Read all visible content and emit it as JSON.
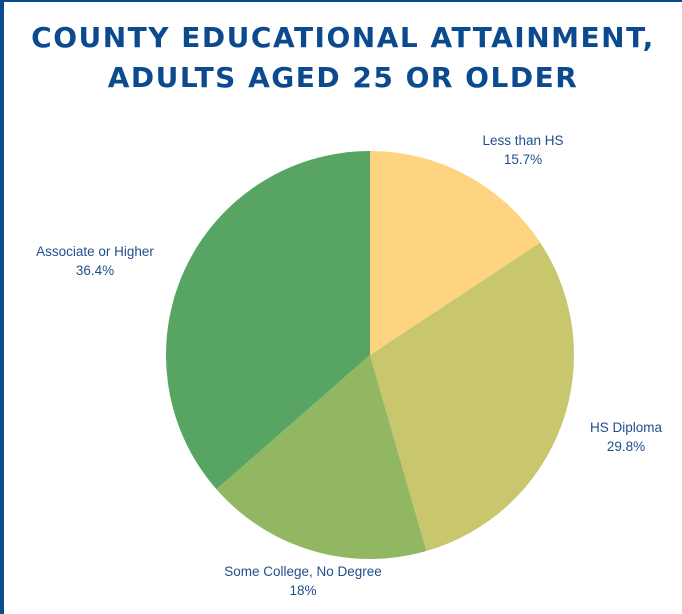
{
  "title": {
    "line1": "COUNTY EDUCATIONAL ATTAINMENT,",
    "line2": "ADULTS AGED 25 OR OLDER"
  },
  "chart_data": {
    "type": "pie",
    "title": "COUNTY EDUCATIONAL ATTAINMENT, ADULTS AGED 25 OR OLDER",
    "start": "12 o'clock",
    "direction": "clockwise",
    "slices": [
      {
        "label": "Less than HS",
        "value": 15.7,
        "display": "15.7%",
        "color": "#fed480"
      },
      {
        "label": "HS Diploma",
        "value": 29.8,
        "display": "29.8%",
        "color": "#c8c76d"
      },
      {
        "label": "Some College, No Degree",
        "value": 18,
        "display": "18%",
        "color": "#92b763"
      },
      {
        "label": "Associate or Higher",
        "value": 36.4,
        "display": "36.4%",
        "color": "#58a563"
      }
    ]
  }
}
